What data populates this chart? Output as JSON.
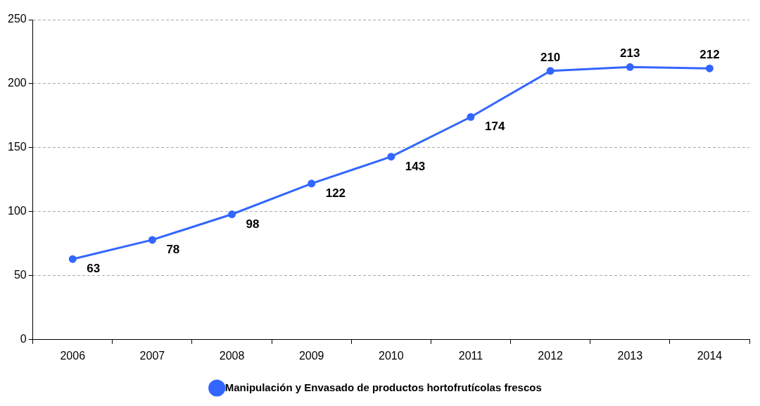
{
  "chart_data": {
    "type": "line",
    "categories": [
      "2006",
      "2007",
      "2008",
      "2009",
      "2010",
      "2011",
      "2012",
      "2013",
      "2014"
    ],
    "series": [
      {
        "name": "Manipulación y Envasado de productos hortofrutícolas frescos",
        "color": "#3366ff",
        "values": [
          63,
          78,
          98,
          122,
          143,
          174,
          210,
          213,
          212
        ]
      }
    ],
    "ylim": [
      0,
      250
    ],
    "yticks": [
      0,
      50,
      100,
      150,
      200,
      250
    ],
    "grid": "y",
    "legend": "bottom",
    "marker": "circle",
    "line_style": "solid",
    "data_labels": true
  }
}
